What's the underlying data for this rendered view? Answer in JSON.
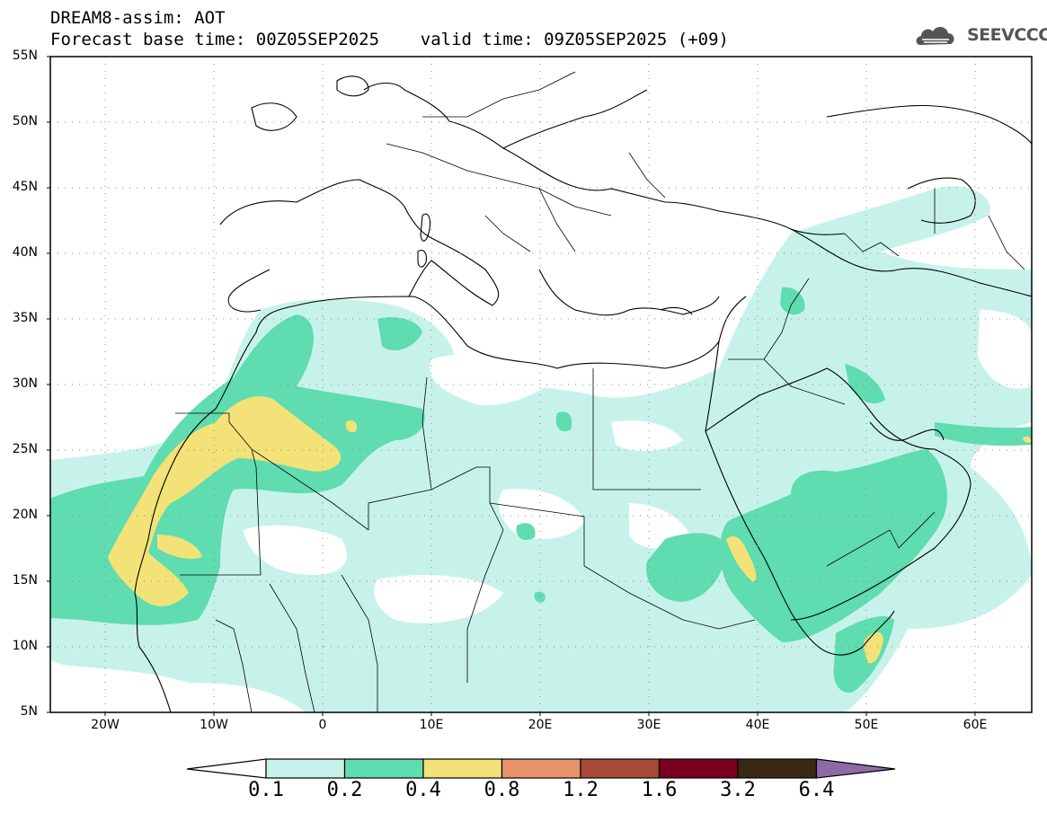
{
  "header": {
    "line1": "DREAM8-assim: AOT",
    "line2": "Forecast base time: 00Z05SEP2025    valid time: 09Z05SEP2025 (+09)"
  },
  "logo": {
    "text": "SEEVCCC",
    "icon": "cloud-icon"
  },
  "map": {
    "lat_labels": [
      "55N",
      "50N",
      "45N",
      "40N",
      "35N",
      "30N",
      "25N",
      "20N",
      "15N",
      "10N",
      "5N"
    ],
    "lon_labels": [
      "20W",
      "10W",
      "0",
      "10E",
      "20E",
      "30E",
      "40E",
      "50E",
      "60E"
    ],
    "colors": {
      "c1": "#c7f2ea",
      "c2": "#5fdcb0",
      "c3": "#f3e278",
      "border": "#000000"
    }
  },
  "colorbar": {
    "labels": [
      "0.1",
      "0.2",
      "0.4",
      "0.8",
      "1.2",
      "1.6",
      "3.2",
      "6.4"
    ],
    "colors": [
      "#ffffff",
      "#c7f2ea",
      "#5fdcb0",
      "#f3e278",
      "#e8936a",
      "#a84a3a",
      "#7a0020",
      "#3a2814",
      "#8e6aa8"
    ]
  }
}
